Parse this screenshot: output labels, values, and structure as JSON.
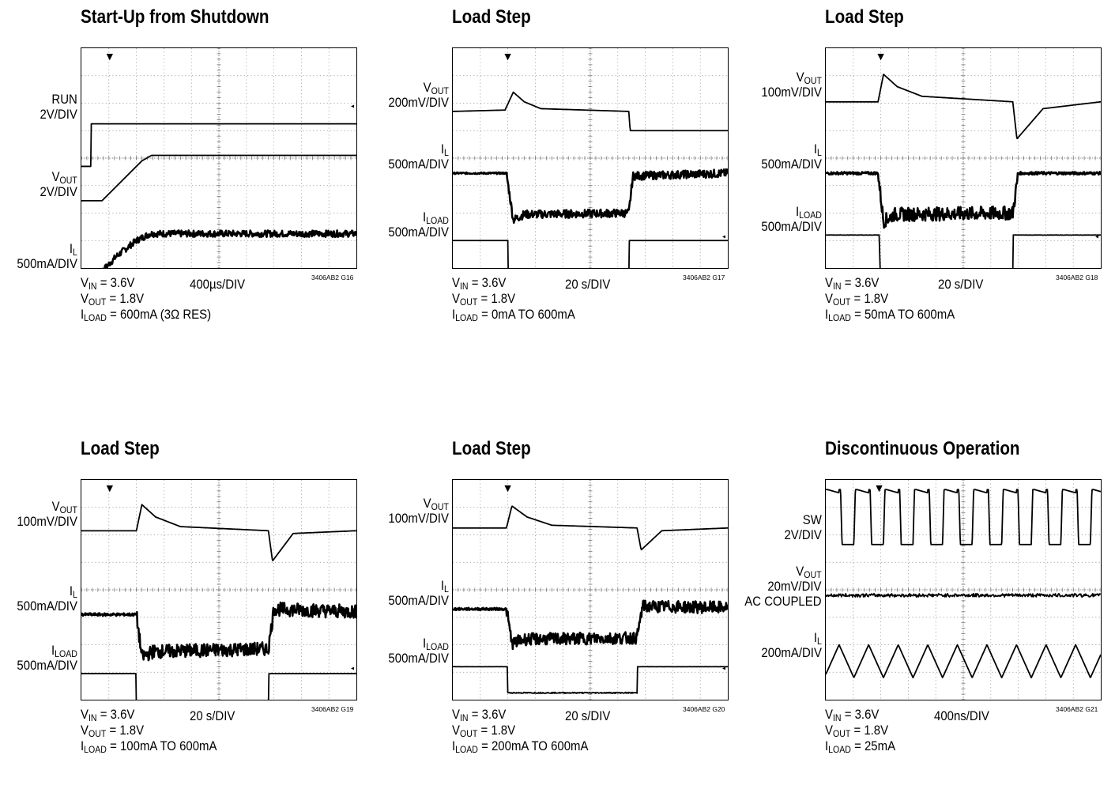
{
  "chart_data": [
    {
      "type": "line",
      "title": "Start-Up from Shutdown",
      "timebase": "400µs/DIV",
      "figure_code": "3406AB2 G16",
      "conditions": [
        {
          "sym": "V",
          "sub": "IN",
          "rest": " = 3.6V"
        },
        {
          "sym": "V",
          "sub": "OUT",
          "rest": " = 1.8V"
        },
        {
          "sym": "I",
          "sub": "LOAD",
          "rest": " = 600mA (3Ω RES)"
        }
      ],
      "traces": [
        {
          "sym": "RUN",
          "sub": "",
          "scale": "2V/DIV",
          "level": 5.25,
          "points": [
            [
              0,
              1.55
            ],
            [
              0.35,
              1.55
            ],
            [
              0.35,
              0
            ],
            [
              10,
              0
            ]
          ],
          "noise": 0
        },
        {
          "sym": "V",
          "sub": "OUT",
          "scale": "2V/DIV",
          "level": 2.45,
          "points": [
            [
              0,
              0
            ],
            [
              0.75,
              0
            ],
            [
              1.5,
              -0.75
            ],
            [
              2.2,
              -1.45
            ],
            [
              2.55,
              -1.65
            ],
            [
              10,
              -1.65
            ]
          ],
          "noise": 0
        },
        {
          "sym": "I",
          "sub": "L",
          "scale": "500mA/DIV",
          "level": -0.15,
          "points": [
            [
              0,
              0
            ],
            [
              0.72,
              0
            ],
            [
              1.3,
              -0.6
            ],
            [
              2.0,
              -1.15
            ],
            [
              2.5,
              -1.4
            ],
            [
              10,
              -1.4
            ]
          ],
          "noise": 0.12
        }
      ]
    },
    {
      "type": "line",
      "title": "Load Step",
      "timebase": "20  s/DIV",
      "figure_code": "3406AB2 G17",
      "conditions": [
        {
          "sym": "V",
          "sub": "IN",
          "rest": " = 3.6V"
        },
        {
          "sym": "V",
          "sub": "OUT",
          "rest": " = 1.8V"
        },
        {
          "sym": "I",
          "sub": "LOAD",
          "rest": " = 0mA TO 600mA"
        }
      ],
      "traces": [
        {
          "sym": "V",
          "sub": "OUT",
          "scale": "200mV/DIV",
          "level": 5.7,
          "points": [
            [
              0,
              0
            ],
            [
              1.9,
              -0.05
            ],
            [
              2.2,
              -0.7
            ],
            [
              2.6,
              -0.35
            ],
            [
              3.2,
              -0.1
            ],
            [
              6.4,
              0
            ],
            [
              6.45,
              0.7
            ],
            [
              10,
              0.7
            ]
          ],
          "noise": 0
        },
        {
          "sym": "I",
          "sub": "L",
          "scale": "500mA/DIV",
          "level": 3.45,
          "points": [
            [
              0,
              0
            ],
            [
              1.95,
              0
            ],
            [
              2.2,
              1.7
            ],
            [
              2.6,
              1.5
            ],
            [
              6.4,
              1.45
            ],
            [
              6.55,
              0.1
            ],
            [
              10,
              0
            ]
          ],
          "noise": 0.15
        },
        {
          "sym": "I",
          "sub": "LOAD",
          "scale": "500mA/DIV",
          "level": 1.0,
          "points": [
            [
              0,
              0
            ],
            [
              2.0,
              0
            ],
            [
              2.02,
              1.45
            ],
            [
              6.4,
              1.45
            ],
            [
              6.42,
              0
            ],
            [
              10,
              0
            ]
          ],
          "noise": 0
        }
      ]
    },
    {
      "type": "line",
      "title": "Load Step",
      "timebase": "20  s/DIV",
      "figure_code": "3406AB2 G18",
      "conditions": [
        {
          "sym": "V",
          "sub": "IN",
          "rest": " = 3.6V"
        },
        {
          "sym": "V",
          "sub": "OUT",
          "rest": " = 1.8V"
        },
        {
          "sym": "I",
          "sub": "LOAD",
          "rest": " = 50mA TO 600mA"
        }
      ],
      "traces": [
        {
          "sym": "V",
          "sub": "OUT",
          "scale": "100mV/DIV",
          "level": 6.05,
          "points": [
            [
              0,
              0
            ],
            [
              1.9,
              0
            ],
            [
              2.1,
              -1.0
            ],
            [
              2.6,
              -0.55
            ],
            [
              3.5,
              -0.2
            ],
            [
              6.8,
              0
            ],
            [
              6.95,
              1.35
            ],
            [
              7.9,
              0.25
            ],
            [
              10,
              0
            ]
          ],
          "noise": 0
        },
        {
          "sym": "I",
          "sub": "L",
          "scale": "500mA/DIV",
          "level": 3.45,
          "points": [
            [
              0,
              0
            ],
            [
              1.9,
              0
            ],
            [
              2.1,
              1.75
            ],
            [
              2.5,
              1.5
            ],
            [
              6.8,
              1.45
            ],
            [
              7.0,
              0
            ],
            [
              10,
              0
            ]
          ],
          "noise": 0.25
        },
        {
          "sym": "I",
          "sub": "LOAD",
          "scale": "500mA/DIV",
          "level": 1.2,
          "points": [
            [
              0,
              0
            ],
            [
              1.95,
              0
            ],
            [
              1.97,
              1.35
            ],
            [
              6.8,
              1.35
            ],
            [
              6.82,
              0
            ],
            [
              10,
              0
            ]
          ],
          "noise": 0.03
        }
      ]
    },
    {
      "type": "line",
      "title": "Load Step",
      "timebase": "20  s/DIV",
      "figure_code": "3406AB2 G19",
      "conditions": [
        {
          "sym": "V",
          "sub": "IN",
          "rest": " = 3.6V"
        },
        {
          "sym": "V",
          "sub": "OUT",
          "rest": " = 1.8V"
        },
        {
          "sym": "I",
          "sub": "LOAD",
          "rest": " = 100mA TO 600mA"
        }
      ],
      "traces": [
        {
          "sym": "V",
          "sub": "OUT",
          "scale": "100mV/DIV",
          "level": 6.15,
          "points": [
            [
              0,
              0
            ],
            [
              2.0,
              0
            ],
            [
              2.2,
              -0.95
            ],
            [
              2.7,
              -0.5
            ],
            [
              3.6,
              -0.15
            ],
            [
              6.8,
              0
            ],
            [
              6.95,
              1.1
            ],
            [
              7.7,
              0.1
            ],
            [
              10,
              0
            ]
          ],
          "noise": 0
        },
        {
          "sym": "I",
          "sub": "L",
          "scale": "500mA/DIV",
          "level": 3.1,
          "points": [
            [
              0,
              0
            ],
            [
              2.0,
              0
            ],
            [
              2.2,
              1.55
            ],
            [
              2.6,
              1.35
            ],
            [
              6.8,
              1.25
            ],
            [
              7.0,
              -0.2
            ],
            [
              10,
              -0.1
            ]
          ],
          "noise": 0.25
        },
        {
          "sym": "I",
          "sub": "LOAD",
          "scale": "500mA/DIV",
          "level": 0.95,
          "points": [
            [
              0,
              0
            ],
            [
              1.98,
              0
            ],
            [
              2.0,
              1.2
            ],
            [
              6.8,
              1.15
            ],
            [
              6.82,
              0
            ],
            [
              10,
              0
            ]
          ],
          "noise": 0.02
        }
      ]
    },
    {
      "type": "line",
      "title": "Load Step",
      "timebase": "20  s/DIV",
      "figure_code": "3406AB2 G20",
      "conditions": [
        {
          "sym": "V",
          "sub": "IN",
          "rest": " = 3.6V"
        },
        {
          "sym": "V",
          "sub": "OUT",
          "rest": " = 1.8V"
        },
        {
          "sym": "I",
          "sub": "LOAD",
          "rest": " = 200mA TO 600mA"
        }
      ],
      "traces": [
        {
          "sym": "V",
          "sub": "OUT",
          "scale": "100mV/DIV",
          "level": 6.25,
          "points": [
            [
              0,
              0
            ],
            [
              1.95,
              0
            ],
            [
              2.15,
              -0.8
            ],
            [
              2.7,
              -0.4
            ],
            [
              3.6,
              -0.1
            ],
            [
              6.7,
              0
            ],
            [
              6.85,
              0.8
            ],
            [
              7.6,
              0.1
            ],
            [
              10,
              0
            ]
          ],
          "noise": 0
        },
        {
          "sym": "I",
          "sub": "L",
          "scale": "500mA/DIV",
          "level": 3.3,
          "points": [
            [
              0,
              0
            ],
            [
              1.95,
              0
            ],
            [
              2.15,
              1.25
            ],
            [
              2.6,
              1.1
            ],
            [
              6.7,
              1.05
            ],
            [
              6.9,
              -0.1
            ],
            [
              10,
              -0.05
            ]
          ],
          "noise": 0.22
        },
        {
          "sym": "I",
          "sub": "LOAD",
          "scale": "500mA/DIV",
          "level": 1.2,
          "points": [
            [
              0,
              0
            ],
            [
              1.98,
              0
            ],
            [
              2.0,
              0.95
            ],
            [
              6.7,
              0.95
            ],
            [
              6.72,
              0
            ],
            [
              10,
              0
            ]
          ],
          "noise": 0.02
        }
      ]
    },
    {
      "type": "line",
      "title": "Discontinuous Operation",
      "timebase": "400ns/DIV",
      "figure_code": "3406AB2 G21",
      "conditions": [
        {
          "sym": "V",
          "sub": "IN",
          "rest": " = 3.6V"
        },
        {
          "sym": "V",
          "sub": "OUT",
          "rest": " = 1.8V"
        },
        {
          "sym": "I",
          "sub": "LOAD",
          "rest": " = 25mA"
        }
      ],
      "traces": [
        {
          "sym": "SW",
          "sub": "",
          "scale": "2V/DIV",
          "level": 5.65,
          "pattern": "square",
          "periods": 9.3,
          "amplitude": 2.0,
          "noise": 0
        },
        {
          "sym": "V",
          "sub": "OUT",
          "scale": "20mV/DIV",
          "extra": "AC COUPLED",
          "level": 3.8,
          "pattern": "flat",
          "noise": 0.06
        },
        {
          "sym": "I",
          "sub": "L",
          "scale": "200mA/DIV",
          "level": 1.4,
          "pattern": "triangle",
          "periods": 9.3,
          "amplitude": 1.2,
          "noise": 0
        }
      ]
    }
  ]
}
